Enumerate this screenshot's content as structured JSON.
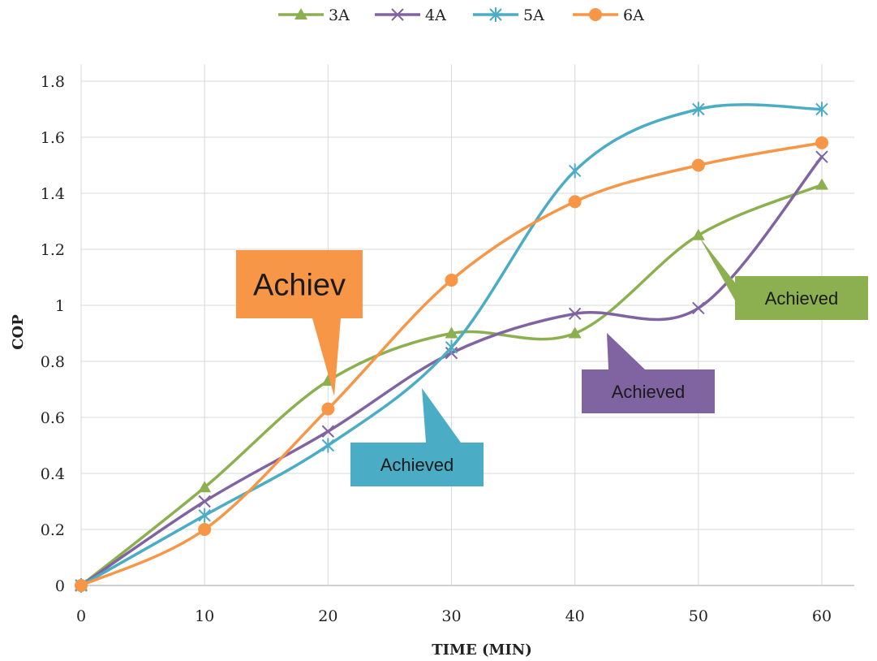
{
  "chart_data": {
    "type": "line",
    "title": "",
    "xlabel": "TIME (MIN)",
    "ylabel": "COP",
    "x": [
      0,
      10,
      20,
      30,
      40,
      50,
      60
    ],
    "xlim": [
      0,
      60
    ],
    "ylim": [
      0,
      1.8
    ],
    "yticks": [
      "0",
      "0.2",
      "0.4",
      "0.6",
      "0.8",
      "1",
      "1.2",
      "1.4",
      "1.6",
      "1.8"
    ],
    "xticks": [
      "0",
      "10",
      "20",
      "30",
      "40",
      "50",
      "60"
    ],
    "grid": true,
    "smooth": true,
    "legend_position": "top",
    "series": [
      {
        "name": "3A",
        "color": "#8cb050",
        "marker": "triangle",
        "values": [
          0,
          0.35,
          0.73,
          0.9,
          0.9,
          1.25,
          1.43
        ]
      },
      {
        "name": "4A",
        "color": "#8064a2",
        "marker": "x",
        "values": [
          0,
          0.3,
          0.55,
          0.83,
          0.97,
          0.99,
          1.53
        ]
      },
      {
        "name": "5A",
        "color": "#4bacc6",
        "marker": "asterisk",
        "values": [
          0,
          0.25,
          0.5,
          0.85,
          1.48,
          1.7,
          1.7
        ]
      },
      {
        "name": "6A",
        "color": "#f79646",
        "marker": "circle",
        "values": [
          0,
          0.2,
          0.63,
          1.09,
          1.37,
          1.5,
          1.58
        ]
      }
    ],
    "annotations": [
      {
        "text": "Achiev",
        "series": "6A",
        "x": 20,
        "y": 0.63,
        "color": "#f79646"
      },
      {
        "text": "Achieved",
        "series": "5A",
        "x": 30,
        "y": 0.85,
        "color": "#4bacc6"
      },
      {
        "text": "Achieved",
        "series": "4A",
        "x": 40,
        "y": 0.97,
        "color": "#8064a2"
      },
      {
        "text": "Achieved",
        "series": "3A",
        "x": 50,
        "y": 1.25,
        "color": "#8cb050"
      }
    ]
  }
}
